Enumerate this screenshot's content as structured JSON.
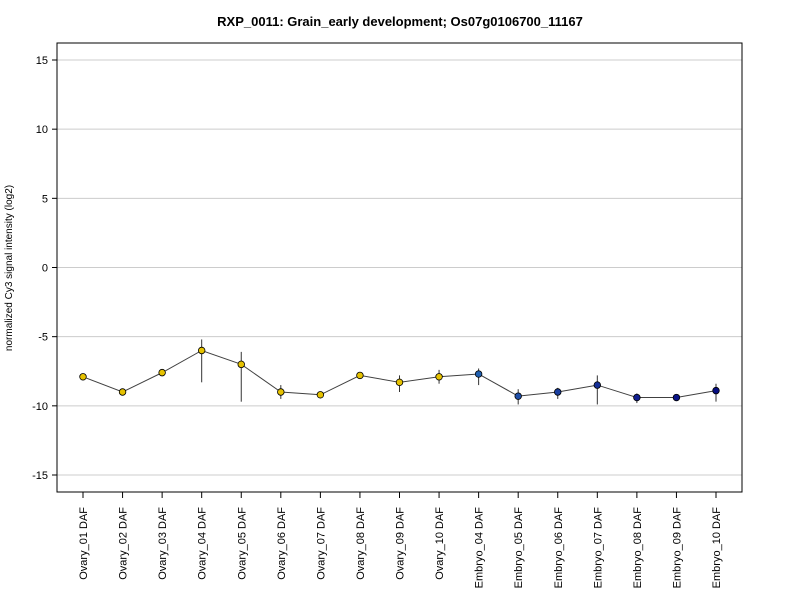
{
  "chart_data": {
    "type": "line",
    "title": "RXP_0011: Grain_early development; Os07g0106700_11167",
    "xlabel": "",
    "ylabel": "normalized Cy3 signal intensity (log2)",
    "ylim": [
      -16,
      16
    ],
    "yticks": [
      15,
      10,
      5,
      0,
      -5,
      -10,
      -15
    ],
    "ytick_labels": [
      "15",
      "10",
      "5",
      "0",
      "-5",
      "-10",
      "-15"
    ],
    "grid": true,
    "categories": [
      "Ovary_01 DAF",
      "Ovary_02 DAF",
      "Ovary_03 DAF",
      "Ovary_04 DAF",
      "Ovary_05 DAF",
      "Ovary_06 DAF",
      "Ovary_07 DAF",
      "Ovary_08 DAF",
      "Ovary_09 DAF",
      "Ovary_10 DAF",
      "Embryo_04 DAF",
      "Embryo_05 DAF",
      "Embryo_06 DAF",
      "Embryo_07 DAF",
      "Embryo_08 DAF",
      "Embryo_09 DAF",
      "Embryo_10 DAF"
    ],
    "values": [
      -7.9,
      -9.0,
      -7.6,
      -6.0,
      -7.0,
      -9.0,
      -9.2,
      -7.8,
      -8.3,
      -7.9,
      -7.7,
      -9.3,
      -9.0,
      -8.5,
      -9.4,
      -9.4,
      -8.9
    ],
    "error_low": [
      -8.0,
      -9.1,
      -7.7,
      -8.3,
      -9.7,
      -9.5,
      -9.3,
      -7.9,
      -9.0,
      -8.4,
      -8.5,
      -9.9,
      -9.5,
      -9.9,
      -9.8,
      -9.5,
      -9.7
    ],
    "error_high": [
      -7.8,
      -8.8,
      -7.5,
      -5.2,
      -6.1,
      -8.5,
      -9.0,
      -7.6,
      -7.8,
      -7.4,
      -7.3,
      -8.8,
      -8.7,
      -7.8,
      -9.1,
      -9.3,
      -8.4
    ],
    "point_colors": [
      "#e6c200",
      "#e6c200",
      "#e6c200",
      "#e6c200",
      "#e6c200",
      "#e6c200",
      "#e6c200",
      "#e6c200",
      "#e6c200",
      "#e6c200",
      "#1f5fb0",
      "#1f4fa8",
      "#1a3fa0",
      "#152f98",
      "#101f90",
      "#0a1588",
      "#050c80"
    ],
    "line_color": "#404040",
    "grid_color": "#cccccc"
  }
}
